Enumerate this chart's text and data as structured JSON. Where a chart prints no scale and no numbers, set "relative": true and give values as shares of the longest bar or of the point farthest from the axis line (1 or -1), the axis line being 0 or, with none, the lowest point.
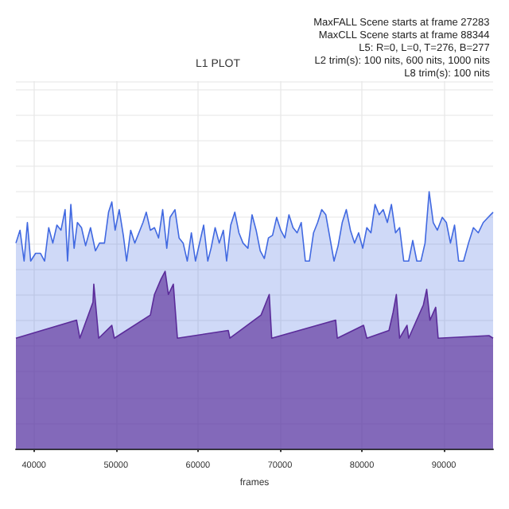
{
  "chart_data": {
    "type": "area",
    "title": "L1 PLOT",
    "xlabel": "frames",
    "relative": true,
    "grid": true,
    "xlim": [
      37800,
      96000
    ],
    "xticks": [
      40000,
      50000,
      60000,
      70000,
      80000,
      90000
    ],
    "annotations": [
      "MaxFALL Scene starts at frame 27283",
      "MaxCLL Scene starts at frame 88344",
      "L5: R=0, L=0, T=276, B=277",
      "L2 trim(s): 100 nits, 600 nits, 1000 nits",
      "L8 trim(s): 100 nits"
    ],
    "series": [
      {
        "color": "#4169e1",
        "x": [
          37800,
          38300,
          38800,
          39200,
          39600,
          40200,
          40800,
          41300,
          41800,
          42300,
          42800,
          43300,
          43800,
          44100,
          44500,
          44900,
          45300,
          45800,
          46300,
          46900,
          47500,
          48000,
          48600,
          49100,
          49500,
          49900,
          50400,
          50900,
          51300,
          51800,
          52300,
          52800,
          53300,
          53700,
          54200,
          54700,
          55200,
          55700,
          56200,
          56600,
          57200,
          57700,
          58200,
          58700,
          59200,
          59700,
          60200,
          60700,
          61200,
          61600,
          62100,
          62600,
          63100,
          63500,
          64000,
          64500,
          65000,
          65500,
          66100,
          66600,
          67100,
          67600,
          68100,
          68600,
          69100,
          69600,
          70100,
          70600,
          71100,
          71600,
          72100,
          72600,
          73100,
          73600,
          74100,
          74600,
          75100,
          75600,
          76100,
          76600,
          77100,
          77600,
          78100,
          78600,
          79100,
          79600,
          80100,
          80600,
          81100,
          81600,
          82100,
          82600,
          83100,
          83600,
          84100,
          84600,
          85100,
          85700,
          86200,
          86700,
          87200,
          87700,
          88200,
          88700,
          89200,
          89800,
          90300,
          90800,
          91300,
          91800,
          92400,
          93000,
          93600,
          94200,
          94800,
          95400,
          96000
        ],
        "values": [
          0.8,
          0.85,
          0.73,
          0.88,
          0.73,
          0.76,
          0.76,
          0.73,
          0.86,
          0.8,
          0.87,
          0.85,
          0.93,
          0.73,
          0.95,
          0.78,
          0.88,
          0.86,
          0.79,
          0.86,
          0.77,
          0.8,
          0.8,
          0.92,
          0.96,
          0.85,
          0.93,
          0.83,
          0.73,
          0.85,
          0.8,
          0.84,
          0.88,
          0.92,
          0.85,
          0.86,
          0.82,
          0.93,
          0.78,
          0.9,
          0.93,
          0.82,
          0.8,
          0.73,
          0.84,
          0.73,
          0.8,
          0.87,
          0.73,
          0.78,
          0.86,
          0.8,
          0.85,
          0.73,
          0.87,
          0.92,
          0.84,
          0.8,
          0.78,
          0.91,
          0.85,
          0.77,
          0.74,
          0.82,
          0.83,
          0.9,
          0.85,
          0.82,
          0.91,
          0.86,
          0.84,
          0.88,
          0.73,
          0.73,
          0.84,
          0.88,
          0.93,
          0.91,
          0.82,
          0.73,
          0.79,
          0.88,
          0.93,
          0.85,
          0.8,
          0.84,
          0.78,
          0.86,
          0.84,
          0.95,
          0.91,
          0.93,
          0.88,
          0.95,
          0.84,
          0.86,
          0.73,
          0.73,
          0.81,
          0.73,
          0.73,
          0.8,
          1.0,
          0.88,
          0.85,
          0.9,
          0.88,
          0.8,
          0.87,
          0.73,
          0.73,
          0.8,
          0.86,
          0.84,
          0.88,
          0.9,
          0.92
        ]
      },
      {
        "color": "#5b2c9a",
        "x": [
          37800,
          45200,
          45600,
          47200,
          47300,
          47900,
          49500,
          49800,
          54200,
          54700,
          55500,
          56000,
          56400,
          57000,
          57500,
          63700,
          63900,
          67700,
          68200,
          68700,
          69000,
          76800,
          77000,
          80200,
          80600,
          83300,
          83800,
          84200,
          84600,
          85500,
          85700,
          87500,
          87900,
          88300,
          89000,
          89300,
          95500,
          96000
        ],
        "values": [
          0.43,
          0.5,
          0.43,
          0.57,
          0.64,
          0.43,
          0.48,
          0.43,
          0.52,
          0.6,
          0.66,
          0.69,
          0.6,
          0.64,
          0.43,
          0.46,
          0.43,
          0.52,
          0.56,
          0.6,
          0.43,
          0.5,
          0.43,
          0.48,
          0.43,
          0.46,
          0.53,
          0.6,
          0.43,
          0.48,
          0.43,
          0.56,
          0.62,
          0.5,
          0.55,
          0.43,
          0.44,
          0.43
        ]
      }
    ]
  }
}
